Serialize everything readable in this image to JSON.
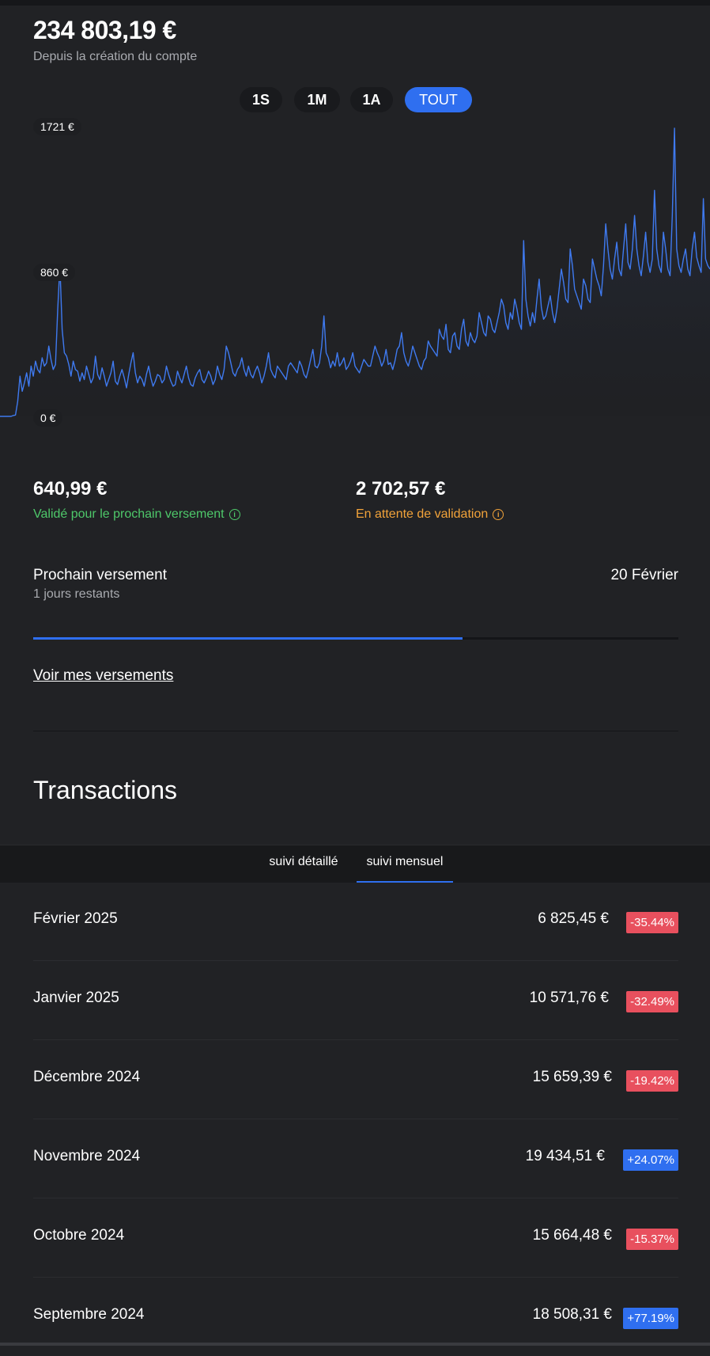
{
  "balance": {
    "amount": "234 803,19 €",
    "subtitle": "Depuis la création du compte"
  },
  "range_tabs": [
    {
      "label": "1S",
      "active": false
    },
    {
      "label": "1M",
      "active": false
    },
    {
      "label": "1A",
      "active": false
    },
    {
      "label": "TOUT",
      "active": true
    }
  ],
  "chart_data": {
    "type": "line",
    "y_tick_labels": [
      "1721 €",
      "860 €",
      "0 €"
    ],
    "ylim": [
      0,
      1721
    ],
    "series_color": "#3f7af0",
    "series": [
      {
        "values": [
          0,
          0,
          0,
          0,
          0,
          0,
          5,
          8,
          90,
          240,
          150,
          200,
          260,
          180,
          300,
          240,
          330,
          280,
          260,
          350,
          300,
          320,
          420,
          340,
          280,
          310,
          640,
          900,
          520,
          380,
          360,
          310,
          240,
          330,
          280,
          270,
          210,
          260,
          220,
          300,
          250,
          200,
          230,
          360,
          250,
          220,
          290,
          240,
          180,
          220,
          260,
          330,
          210,
          190,
          240,
          280,
          230,
          170,
          250,
          320,
          380,
          260,
          200,
          240,
          220,
          180,
          250,
          300,
          230,
          180,
          210,
          250,
          240,
          200,
          220,
          300,
          250,
          210,
          180,
          190,
          270,
          230,
          200,
          250,
          300,
          230,
          190,
          180,
          230,
          260,
          280,
          220,
          200,
          230,
          270,
          240,
          190,
          220,
          300,
          250,
          220,
          280,
          420,
          380,
          320,
          260,
          240,
          280,
          300,
          350,
          280,
          240,
          300,
          250,
          230,
          270,
          300,
          260,
          200,
          240,
          300,
          380,
          280,
          250,
          230,
          300,
          280,
          260,
          240,
          220,
          300,
          320,
          300,
          280,
          260,
          330,
          300,
          250,
          230,
          280,
          340,
          400,
          300,
          290,
          320,
          420,
          600,
          380,
          350,
          290,
          330,
          300,
          380,
          300,
          320,
          350,
          280,
          300,
          330,
          380,
          300,
          280,
          260,
          300,
          340,
          320,
          300,
          300,
          360,
          420,
          380,
          350,
          300,
          330,
          400,
          310,
          320,
          280,
          330,
          400,
          420,
          500,
          380,
          330,
          300,
          350,
          420,
          380,
          340,
          300,
          280,
          330,
          350,
          450,
          420,
          400,
          380,
          360,
          520,
          480,
          460,
          550,
          400,
          380,
          480,
          500,
          420,
          400,
          520,
          580,
          450,
          420,
          500,
          460,
          440,
          480,
          620,
          560,
          500,
          480,
          600,
          580,
          520,
          500,
          560,
          620,
          700,
          660,
          560,
          520,
          620,
          580,
          700,
          640,
          560,
          520,
          1050,
          700,
          600,
          540,
          620,
          560,
          700,
          820,
          650,
          580,
          600,
          660,
          720,
          620,
          560,
          640,
          760,
          880,
          800,
          700,
          680,
          1000,
          900,
          760,
          720,
          680,
          640,
          820,
          780,
          700,
          680,
          940,
          880,
          820,
          780,
          720,
          900,
          1150,
          1000,
          880,
          820,
          940,
          1040,
          880,
          840,
          1000,
          1150,
          920,
          880,
          1000,
          1200,
          1000,
          900,
          840,
          960,
          1100,
          920,
          860,
          940,
          1350,
          1000,
          900,
          860,
          1100,
          1000,
          880,
          840,
          1200,
          1721,
          1000,
          900,
          860,
          940,
          1000,
          880,
          840,
          1000,
          1100,
          950,
          900,
          860,
          1300,
          940,
          900,
          880
        ]
      }
    ]
  },
  "stats": {
    "validated": {
      "value": "640,99 €",
      "label": "Validé pour le prochain versement",
      "color": "#4ec86a"
    },
    "pending": {
      "value": "2 702,57 €",
      "label": "En attente de validation",
      "color": "#f2a33a"
    }
  },
  "next_payout": {
    "title": "Prochain versement",
    "remaining": "1 jours restants",
    "date": "20 Février",
    "progress": 0.665
  },
  "payouts_link": "Voir mes versements",
  "transactions": {
    "heading": "Transactions",
    "tabs": [
      {
        "label": "suivi détaillé",
        "active": false
      },
      {
        "label": "suivi mensuel",
        "active": true
      }
    ],
    "rows": [
      {
        "month": "Février 2025",
        "amount": "6 825,45 €",
        "change": "-35.44%",
        "positive": false
      },
      {
        "month": "Janvier 2025",
        "amount": "10 571,76 €",
        "change": "-32.49%",
        "positive": false
      },
      {
        "month": "Décembre 2024",
        "amount": "15 659,39 €",
        "change": "-19.42%",
        "positive": false
      },
      {
        "month": "Novembre 2024",
        "amount": "19 434,51 €",
        "change": "+24.07%",
        "positive": true
      },
      {
        "month": "Octobre 2024",
        "amount": "15 664,48 €",
        "change": "-15.37%",
        "positive": false
      },
      {
        "month": "Septembre 2024",
        "amount": "18 508,31 €",
        "change": "+77.19%",
        "positive": true
      }
    ]
  }
}
